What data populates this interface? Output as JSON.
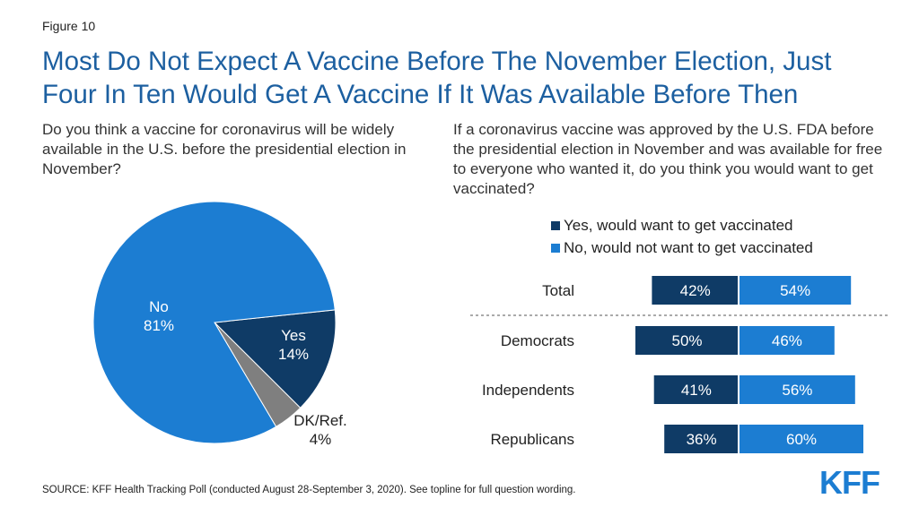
{
  "figure_label": "Figure 10",
  "title_line1": "Most Do Not Expect A Vaccine Before The November Election, Just",
  "title_line2": "Four In Ten Would Get A Vaccine If It Was Available Before Then",
  "question_left": "Do you think a vaccine for coronavirus will be widely available in the U.S. before the presidential election in November?",
  "question_right": "If a coronavirus vaccine was approved by the U.S. FDA before the presidential election in November and was available for free to everyone who wanted it, do you think you would want to get vaccinated?",
  "source": "SOURCE: KFF Health Tracking Poll (conducted August 28-September 3, 2020). See topline for full question wording.",
  "logo_text": "KFF",
  "colors": {
    "title": "#1c5fa0",
    "dark_blue": "#0f3b66",
    "light_blue": "#1c7dd2",
    "gray": "#7f7f7f",
    "logo": "#1c7dd2"
  },
  "chart_data": [
    {
      "type": "pie",
      "slices": [
        {
          "label": "No",
          "value": 81,
          "value_label": "81%",
          "color": "#1c7dd2"
        },
        {
          "label": "Yes",
          "value": 14,
          "value_label": "14%",
          "color": "#0f3b66"
        },
        {
          "label": "DK/Ref.",
          "value": 4,
          "value_label": "4%",
          "color": "#7f7f7f"
        }
      ]
    },
    {
      "type": "bar",
      "orientation": "diverging-horizontal",
      "categories": [
        "Total",
        "Democrats",
        "Independents",
        "Republicans"
      ],
      "series": [
        {
          "name": "Yes, would want to get vaccinated",
          "values": [
            42,
            50,
            41,
            36
          ],
          "labels": [
            "42%",
            "50%",
            "41%",
            "36%"
          ],
          "color": "#0f3b66"
        },
        {
          "name": "No, would not want to get vaccinated",
          "values": [
            54,
            46,
            56,
            60
          ],
          "labels": [
            "54%",
            "46%",
            "56%",
            "60%"
          ],
          "color": "#1c7dd2"
        }
      ],
      "legend_placement": "top",
      "divider_after": "Total"
    }
  ]
}
